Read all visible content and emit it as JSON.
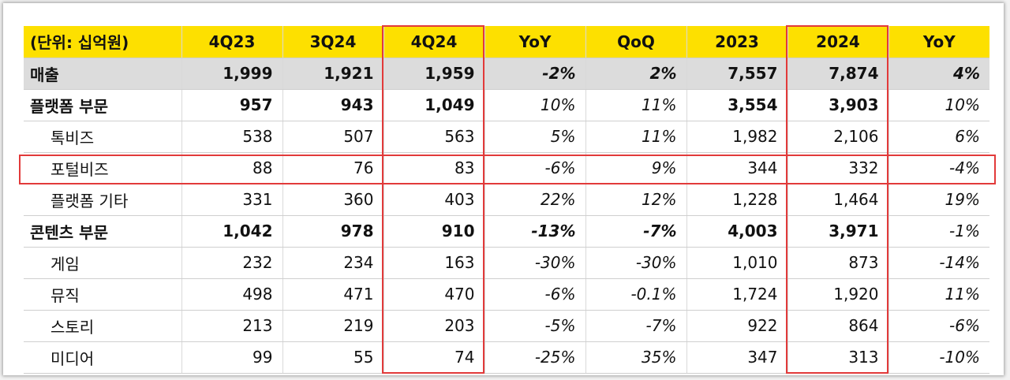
{
  "header": [
    "(단위: 십억원)",
    "4Q23",
    "3Q24",
    "4Q24",
    "YoY",
    "QoQ",
    "2023",
    "2024",
    "YoY"
  ],
  "rows": [
    {
      "label": "매출",
      "values": [
        "1,999",
        "1,921",
        "1,959",
        "-2%",
        "2%",
        "7,557",
        "7,874",
        "4%"
      ]
    },
    {
      "label": "플랫폼 부문",
      "values": [
        "957",
        "943",
        "1,049",
        "10%",
        "11%",
        "3,554",
        "3,903",
        "10%"
      ]
    },
    {
      "label": "톡비즈",
      "values": [
        "538",
        "507",
        "563",
        "5%",
        "11%",
        "1,982",
        "2,106",
        "6%"
      ]
    },
    {
      "label": "포털비즈",
      "values": [
        "88",
        "76",
        "83",
        "-6%",
        "9%",
        "344",
        "332",
        "-4%"
      ]
    },
    {
      "label": "플랫폼 기타",
      "values": [
        "331",
        "360",
        "403",
        "22%",
        "12%",
        "1,228",
        "1,464",
        "19%"
      ]
    },
    {
      "label": "콘텐츠 부문",
      "values": [
        "1,042",
        "978",
        "910",
        "-13%",
        "-7%",
        "4,003",
        "3,971",
        "-1%"
      ]
    },
    {
      "label": "게임",
      "values": [
        "232",
        "234",
        "163",
        "-30%",
        "-30%",
        "1,010",
        "873",
        "-14%"
      ]
    },
    {
      "label": "뮤직",
      "values": [
        "498",
        "471",
        "470",
        "-6%",
        "-0.1%",
        "1,724",
        "1,920",
        "11%"
      ]
    },
    {
      "label": "스토리",
      "values": [
        "213",
        "219",
        "203",
        "-5%",
        "-7%",
        "922",
        "864",
        "-6%"
      ]
    },
    {
      "label": "미디어",
      "values": [
        "99",
        "55",
        "74",
        "-25%",
        "35%",
        "347",
        "313",
        "-10%"
      ]
    }
  ],
  "colors": {
    "header_bg": "#fde000",
    "total_bg": "#dcdcdc",
    "highlight": "#e23a3a"
  }
}
